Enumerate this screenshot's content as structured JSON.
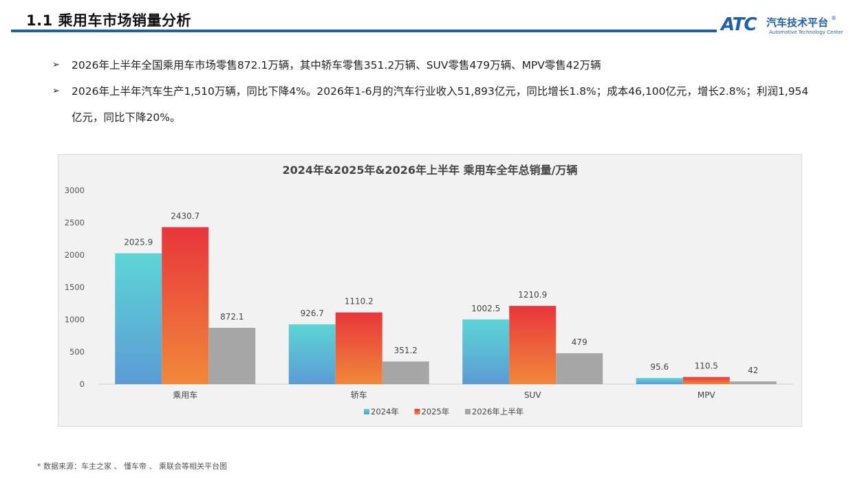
{
  "header": {
    "title": "1.1 乘用车市场销量分析",
    "logo_mark": "ATC",
    "logo_name": "汽车技术平台",
    "logo_reg": "®",
    "logo_subtitle": "Automotive Technology Center"
  },
  "bullets": [
    {
      "marker": "➢",
      "text": "2026年上半年全国乘用车市场零售872.1万辆，其中轿车零售351.2万辆、SUV零售479万辆、MPV零售42万辆"
    },
    {
      "marker": "➢",
      "text": "2026年上半年汽车生产1,510万辆，同比下降4%。2026年1-6月的汽车行业收入51,893亿元，同比增长1.8%；成本46,100亿元，增长2.8%；利润1,954亿元，同比下降20%。"
    }
  ],
  "footnote": "* 数据来源：车主之家 、 懂车帝 、 乘联会等相关平台图",
  "chart_data": {
    "type": "bar",
    "title": "2024年&2025年&2026年上半年 乘用车全年总销量/万辆",
    "categories": [
      "乘用车",
      "轿车",
      "SUV",
      "MPV"
    ],
    "series": [
      {
        "name": "2024年",
        "values": [
          2025.9,
          926.7,
          1002.5,
          95.6
        ],
        "labels": [
          "2025.9",
          "926.7",
          "1002.5",
          "95.6"
        ],
        "color_top": "#5dd5d5",
        "color_bottom": "#5b9bd5"
      },
      {
        "name": "2025年",
        "values": [
          2430.7,
          1110.2,
          1210.9,
          110.5
        ],
        "labels": [
          "2430.7",
          "1110.2",
          "1210.9",
          "110.5"
        ],
        "color_top": "#e8363c",
        "color_bottom": "#f0883a"
      },
      {
        "name": "2026年上半年",
        "values": [
          872.1,
          351.2,
          479,
          42
        ],
        "labels": [
          "872.1",
          "351.2",
          "479",
          "42"
        ],
        "color_top": "#a6a6a6",
        "color_bottom": "#a6a6a6"
      }
    ],
    "ylim": [
      0,
      3000
    ],
    "yticks": [
      "0",
      "500",
      "1000",
      "1500",
      "2000",
      "2500",
      "3000"
    ],
    "grid": false,
    "legend": "bottom"
  }
}
